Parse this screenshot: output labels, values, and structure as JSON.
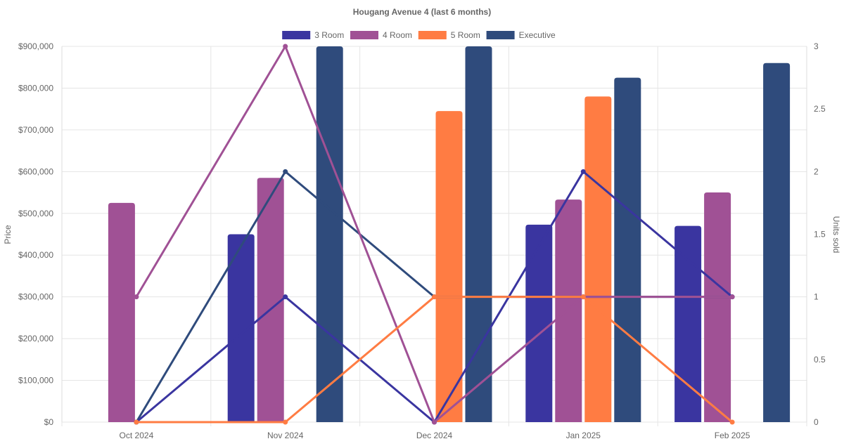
{
  "chart_data": {
    "type": "bar",
    "title": "Hougang Avenue 4 (last 6 months)",
    "categories": [
      "Oct 2024",
      "Nov 2024",
      "Dec 2024",
      "Jan 2025",
      "Feb 2025"
    ],
    "ylabel": "Price",
    "y2label": "Units sold",
    "ylim": [
      0,
      900000
    ],
    "y2lim": [
      0,
      3
    ],
    "yticks": [
      "$0",
      "$100,000",
      "$200,000",
      "$300,000",
      "$400,000",
      "$500,000",
      "$600,000",
      "$700,000",
      "$800,000",
      "$900,000"
    ],
    "y2ticks": [
      "0",
      "0.5",
      "1",
      "1.5",
      "2",
      "2.5",
      "3"
    ],
    "legend_position": "top",
    "grid": true,
    "series": [
      {
        "name": "3 Room",
        "color": "#3a35a0",
        "price": [
          null,
          450000,
          null,
          473000,
          470000
        ],
        "units": [
          0,
          1,
          0,
          2,
          1
        ]
      },
      {
        "name": "4 Room",
        "color": "#a05195",
        "price": [
          525000,
          585000,
          null,
          533000,
          550000
        ],
        "units": [
          1,
          3,
          0,
          1,
          1
        ]
      },
      {
        "name": "5 Room",
        "color": "#ff7c43",
        "price": [
          null,
          null,
          745000,
          780000,
          null
        ],
        "units": [
          0,
          0,
          1,
          1,
          0
        ]
      },
      {
        "name": "Executive",
        "color": "#2f4b7c",
        "price": [
          null,
          900000,
          900000,
          825000,
          860000
        ],
        "units": [
          0,
          2,
          1,
          1,
          1
        ]
      }
    ]
  }
}
